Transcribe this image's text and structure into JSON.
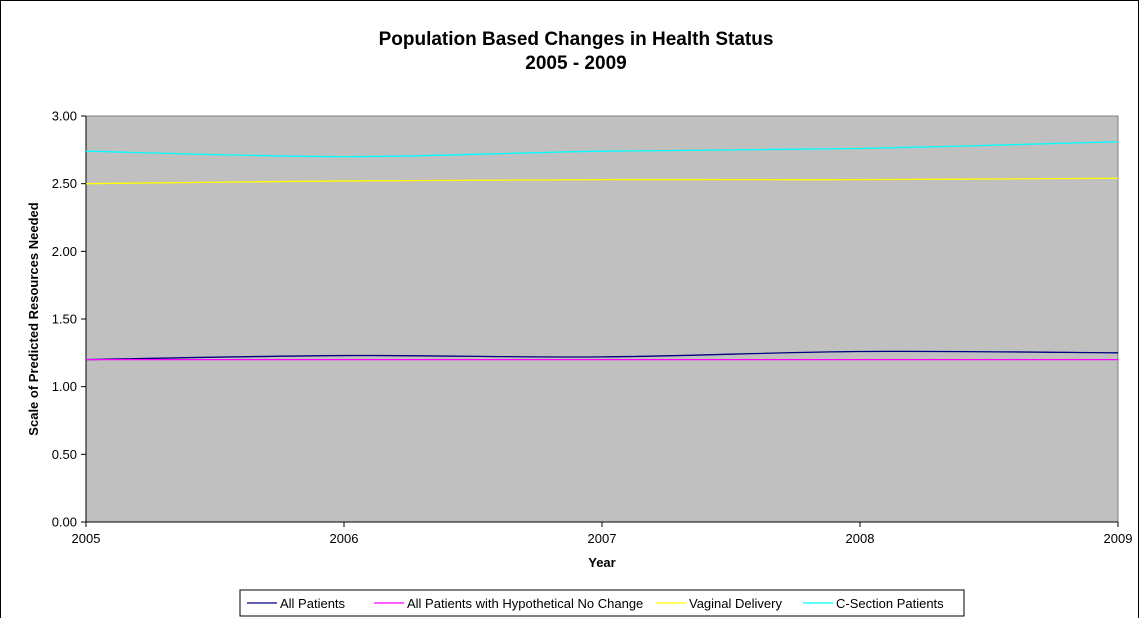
{
  "chart_data": {
    "type": "line",
    "title": "Population Based Changes in Health Status",
    "subtitle": "2005 - 2009",
    "xlabel": "Year",
    "ylabel": "Scale of Predicted Resources Needed",
    "x": [
      2005,
      2006,
      2007,
      2008,
      2009
    ],
    "x_tick_labels": [
      "2005",
      "2006",
      "2007",
      "2008",
      "2009"
    ],
    "ylim": [
      0,
      3
    ],
    "y_tick_labels": [
      "0.00",
      "0.50",
      "1.00",
      "1.50",
      "2.00",
      "2.50",
      "3.00"
    ],
    "plot_background": "#c0c0c0",
    "grid": false,
    "legend_position": "bottom",
    "series": [
      {
        "name": "All Patients",
        "color": "#000080",
        "values": [
          1.2,
          1.23,
          1.22,
          1.26,
          1.25
        ]
      },
      {
        "name": "All Patients with Hypothetical No Change",
        "color": "#ff00ff",
        "values": [
          1.2,
          1.2,
          1.2,
          1.2,
          1.2
        ]
      },
      {
        "name": "Vaginal Delivery",
        "color": "#ffff00",
        "values": [
          2.5,
          2.52,
          2.53,
          2.53,
          2.54
        ]
      },
      {
        "name": "C-Section Patients",
        "color": "#00ffff",
        "values": [
          2.74,
          2.7,
          2.74,
          2.76,
          2.81
        ]
      }
    ]
  }
}
